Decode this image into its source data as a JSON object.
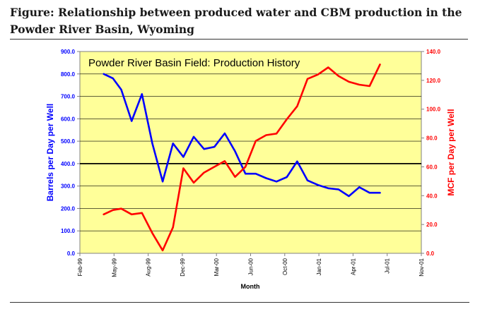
{
  "figure_title": "Figure: Relationship between produced water and CBM production in the Powder River Basin, Wyoming",
  "chart_data": {
    "type": "line",
    "title": "Powder River Basin Field: Production History",
    "xlabel": "Month",
    "ylabel": "Barrels per Day per Well",
    "y2label": "MCF per Day per Well",
    "categories": [
      "Feb-99",
      "May-99",
      "Aug-99",
      "Dec-99",
      "Mar-00",
      "Jun-00",
      "Oct-00",
      "Jan-01",
      "Apr-01",
      "Jul-01",
      "Nov-01"
    ],
    "xlim": [
      0,
      33
    ],
    "ylim": [
      0,
      900
    ],
    "y2lim": [
      0,
      140
    ],
    "yticks": [
      "0.0",
      "100.0",
      "200.0",
      "300.0",
      "400.0",
      "500.0",
      "600.0",
      "700.0",
      "800.0",
      "900.0"
    ],
    "y2ticks": [
      "0.0",
      "20.0",
      "40.0",
      "60.0",
      "80.0",
      "100.0",
      "120.0",
      "140.0"
    ],
    "reference_line_y": 400,
    "plot_background": "#ffff99",
    "grid": true,
    "series": [
      {
        "axis": "left",
        "color": "#0000ff",
        "x": [
          2.3,
          3.2,
          4.0,
          5.0,
          6.0,
          7.0,
          8.0,
          9.0,
          10.0,
          11.0,
          12.0,
          13.0,
          14.0,
          15.0,
          16.0,
          17.0,
          18.0,
          19.0,
          20.0,
          21.0,
          22.0,
          23.0,
          24.0,
          25.0,
          26.0,
          27.0,
          28.0,
          29.0
        ],
        "values": [
          800,
          780,
          730,
          590,
          710,
          490,
          320,
          490,
          430,
          520,
          465,
          475,
          535,
          455,
          355,
          355,
          335,
          320,
          340,
          410,
          325,
          305,
          290,
          285,
          255,
          295,
          270,
          270
        ]
      },
      {
        "axis": "right",
        "color": "#ff0000",
        "x": [
          2.3,
          3.2,
          4.0,
          5.0,
          6.0,
          7.0,
          8.0,
          9.0,
          10.0,
          11.0,
          12.0,
          13.0,
          14.0,
          15.0,
          16.0,
          17.0,
          18.0,
          19.0,
          20.0,
          21.0,
          22.0,
          23.0,
          24.0,
          25.0,
          26.0,
          27.0,
          28.0,
          29.0
        ],
        "values": [
          27,
          30,
          31,
          27,
          28,
          14,
          2,
          18,
          59,
          49,
          56,
          60,
          64,
          53,
          60,
          78,
          82,
          83,
          93,
          102,
          121,
          124,
          129,
          123,
          119,
          117,
          116,
          131
        ]
      }
    ]
  }
}
